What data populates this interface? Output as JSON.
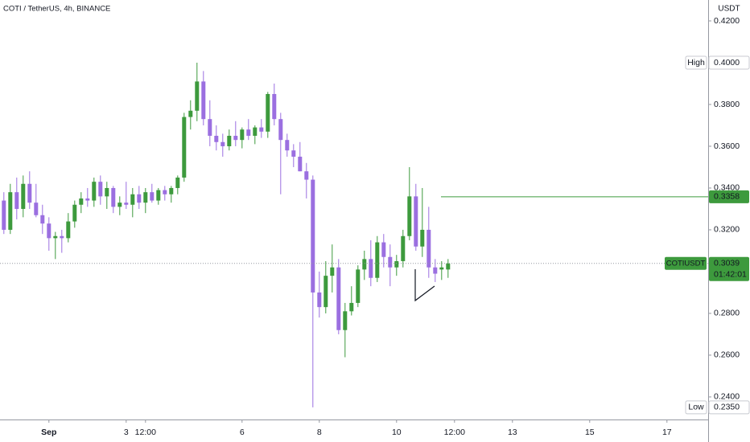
{
  "chart_data": {
    "type": "candlestick",
    "title": "COTI / TetherUS, 4h, BINANCE",
    "axis_unit": "USDT",
    "up_color": "#3d9a3d",
    "down_color": "#9b6fe0",
    "ylim": [
      0.2292,
      0.43
    ],
    "yticks": [
      {
        "value": 0.42,
        "label": "0.4200"
      },
      {
        "value": 0.38,
        "label": "0.3800"
      },
      {
        "value": 0.36,
        "label": "0.3600"
      },
      {
        "value": 0.34,
        "label": "0.3400"
      },
      {
        "value": 0.32,
        "label": "0.3200"
      },
      {
        "value": 0.28,
        "label": "0.2800"
      },
      {
        "value": 0.26,
        "label": "0.2600"
      },
      {
        "value": 0.24,
        "label": "0.2400"
      }
    ],
    "xlim": [
      -0.6,
      109.4
    ],
    "xticks": [
      {
        "value": 7,
        "label": "Sep"
      },
      {
        "value": 19,
        "label": "3"
      },
      {
        "value": 22,
        "label": "12:00"
      },
      {
        "value": 37,
        "label": "6"
      },
      {
        "value": 49,
        "label": "8"
      },
      {
        "value": 61,
        "label": "10"
      },
      {
        "value": 70,
        "label": "12:00"
      },
      {
        "value": 79,
        "label": "13"
      },
      {
        "value": 91,
        "label": "15"
      },
      {
        "value": 103,
        "label": "17"
      }
    ],
    "open": [
      0.334,
      0.32,
      0.338,
      0.33,
      0.342,
      0.333,
      0.327,
      0.323,
      0.316,
      0.317,
      0.316,
      0.324,
      0.332,
      0.335,
      0.334,
      0.343,
      0.336,
      0.34,
      0.331,
      0.333,
      0.332,
      0.337,
      0.333,
      0.338,
      0.334,
      0.339,
      0.337,
      0.34,
      0.345,
      0.374,
      0.377,
      0.391,
      0.373,
      0.365,
      0.362,
      0.36,
      0.365,
      0.363,
      0.368,
      0.365,
      0.369,
      0.367,
      0.385,
      0.373,
      0.363,
      0.358,
      0.355,
      0.348,
      0.344,
      0.29,
      0.283,
      0.298,
      0.302,
      0.272,
      0.281,
      0.285,
      0.301,
      0.306,
      0.297,
      0.314,
      0.307,
      0.302,
      0.305,
      0.317,
      0.336,
      0.312,
      0.32,
      0.302,
      0.301,
      0.301
    ],
    "high": [
      0.338,
      0.342,
      0.345,
      0.346,
      0.348,
      0.342,
      0.332,
      0.326,
      0.319,
      0.32,
      0.328,
      0.334,
      0.338,
      0.34,
      0.345,
      0.346,
      0.343,
      0.341,
      0.336,
      0.343,
      0.34,
      0.341,
      0.34,
      0.342,
      0.34,
      0.341,
      0.341,
      0.346,
      0.376,
      0.382,
      0.4,
      0.396,
      0.382,
      0.37,
      0.366,
      0.368,
      0.372,
      0.369,
      0.373,
      0.37,
      0.373,
      0.386,
      0.39,
      0.376,
      0.366,
      0.361,
      0.362,
      0.352,
      0.346,
      0.3,
      0.305,
      0.313,
      0.306,
      0.285,
      0.293,
      0.303,
      0.31,
      0.315,
      0.317,
      0.318,
      0.313,
      0.308,
      0.32,
      0.35,
      0.342,
      0.34,
      0.331,
      0.306,
      0.305,
      0.306
    ],
    "low": [
      0.318,
      0.318,
      0.325,
      0.326,
      0.33,
      0.326,
      0.318,
      0.31,
      0.306,
      0.309,
      0.314,
      0.321,
      0.328,
      0.331,
      0.331,
      0.332,
      0.33,
      0.328,
      0.327,
      0.33,
      0.326,
      0.33,
      0.328,
      0.333,
      0.332,
      0.334,
      0.333,
      0.337,
      0.343,
      0.368,
      0.372,
      0.37,
      0.36,
      0.358,
      0.355,
      0.358,
      0.36,
      0.359,
      0.363,
      0.361,
      0.364,
      0.364,
      0.37,
      0.337,
      0.355,
      0.35,
      0.348,
      0.335,
      0.235,
      0.278,
      0.28,
      0.29,
      0.27,
      0.259,
      0.279,
      0.283,
      0.296,
      0.293,
      0.295,
      0.302,
      0.293,
      0.298,
      0.302,
      0.315,
      0.31,
      0.307,
      0.297,
      0.295,
      0.296,
      0.297
    ],
    "close": [
      0.32,
      0.338,
      0.33,
      0.342,
      0.333,
      0.327,
      0.323,
      0.316,
      0.317,
      0.316,
      0.324,
      0.332,
      0.335,
      0.334,
      0.343,
      0.336,
      0.34,
      0.331,
      0.333,
      0.332,
      0.337,
      0.333,
      0.338,
      0.334,
      0.339,
      0.337,
      0.34,
      0.345,
      0.374,
      0.377,
      0.391,
      0.373,
      0.365,
      0.362,
      0.36,
      0.365,
      0.363,
      0.368,
      0.365,
      0.369,
      0.367,
      0.385,
      0.373,
      0.363,
      0.358,
      0.355,
      0.348,
      0.344,
      0.29,
      0.283,
      0.298,
      0.302,
      0.272,
      0.281,
      0.285,
      0.301,
      0.306,
      0.297,
      0.314,
      0.307,
      0.302,
      0.305,
      0.317,
      0.336,
      0.312,
      0.32,
      0.302,
      0.299,
      0.302,
      0.3039
    ],
    "high_marker": {
      "label": "High",
      "value": 0.4,
      "value_label": "0.4000"
    },
    "low_marker": {
      "label": "Low",
      "value": 0.235,
      "value_label": "0.2350"
    },
    "level_line": {
      "value": 0.3358,
      "value_label": "0.3358",
      "color": "#3d9a3d"
    },
    "last_price": {
      "symbol": "COTIUSDT",
      "value": 0.3039,
      "value_label": "0.3039",
      "countdown": "01:42:01"
    }
  }
}
